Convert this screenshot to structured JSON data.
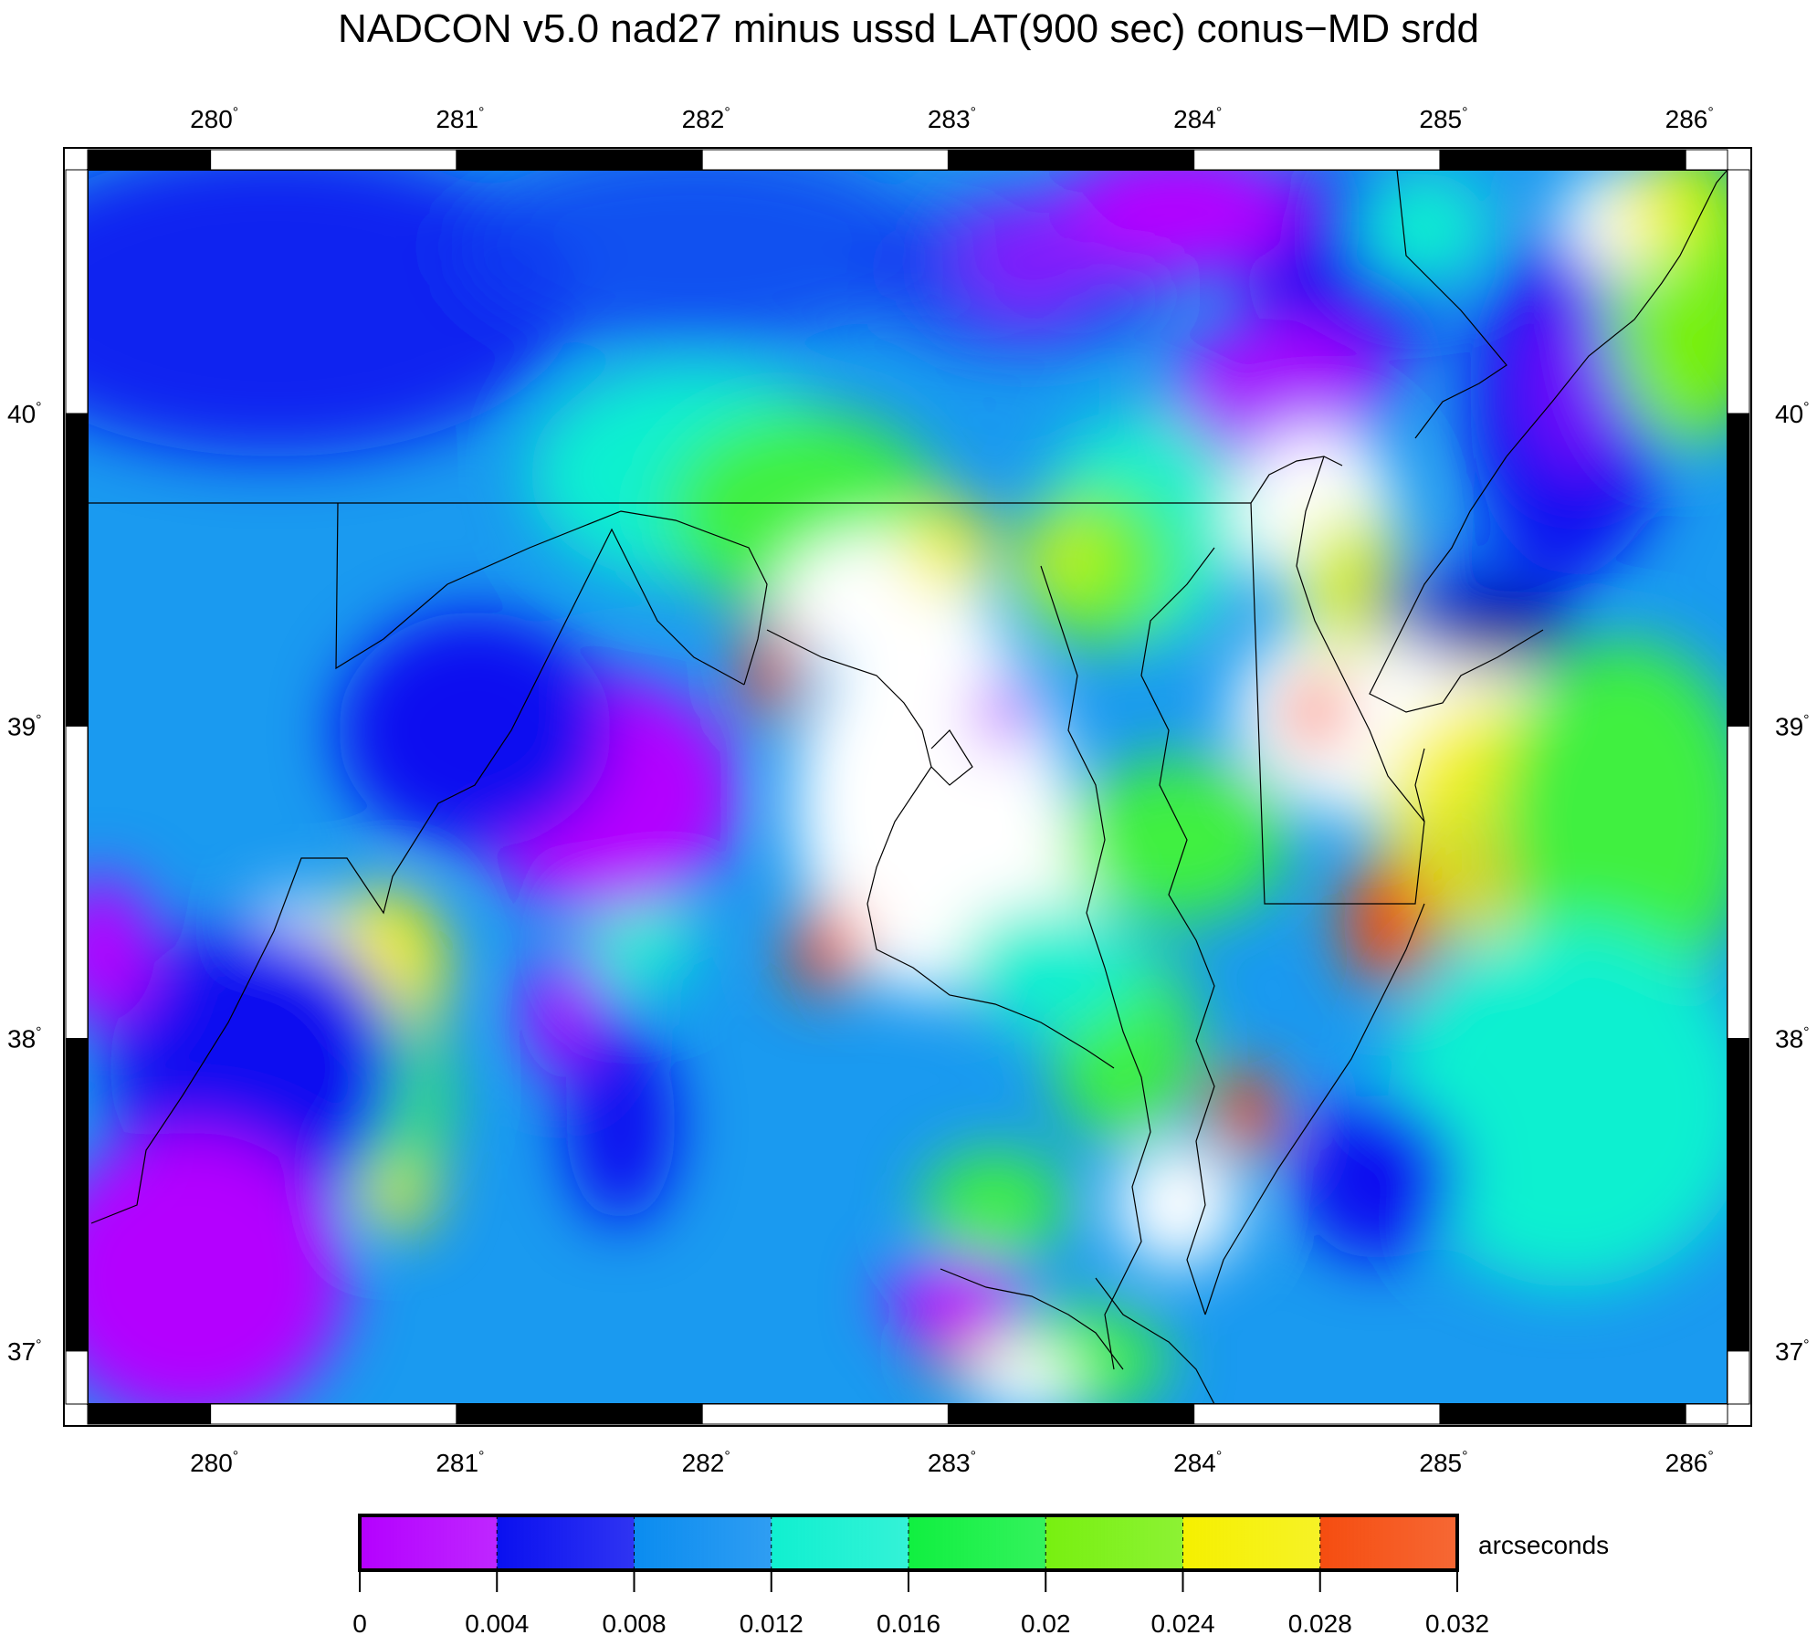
{
  "title": "NADCON v5.0 nad27 minus ussd LAT(900 sec) conus−MD srdd",
  "map": {
    "lon_range": [
      279.5,
      286.17
    ],
    "lat_range": [
      36.83,
      40.78
    ],
    "top_axis_labels": [
      "280",
      "281",
      "282",
      "283",
      "284",
      "285",
      "286"
    ],
    "bottom_axis_labels": [
      "280",
      "281",
      "282",
      "283",
      "284",
      "285",
      "286"
    ],
    "left_axis_labels": [
      "40",
      "39",
      "38",
      "37"
    ],
    "right_axis_labels": [
      "40",
      "39",
      "38",
      "37"
    ],
    "degree_symbol": "°"
  },
  "colorbar": {
    "unit_label": "arcseconds",
    "tick_labels": [
      "0",
      "0.004",
      "0.008",
      "0.012",
      "0.016",
      "0.02",
      "0.024",
      "0.028",
      "0.032"
    ],
    "colors": [
      "#b400ff",
      "#0a10f0",
      "#0a8cf0",
      "#10f0d0",
      "#10f040",
      "#78f010",
      "#f5f000",
      "#f54d10"
    ]
  },
  "field_colors": {
    "base": "#1a9af0",
    "purple": "#b400ff",
    "blue": "#0a10f0",
    "cyan": "#10f0d0",
    "green": "#10f040",
    "yellowgreen": "#78f010",
    "yellow": "#f5f000",
    "orange": "#f54d10",
    "white": "#ffffff",
    "black": "#000000"
  }
}
